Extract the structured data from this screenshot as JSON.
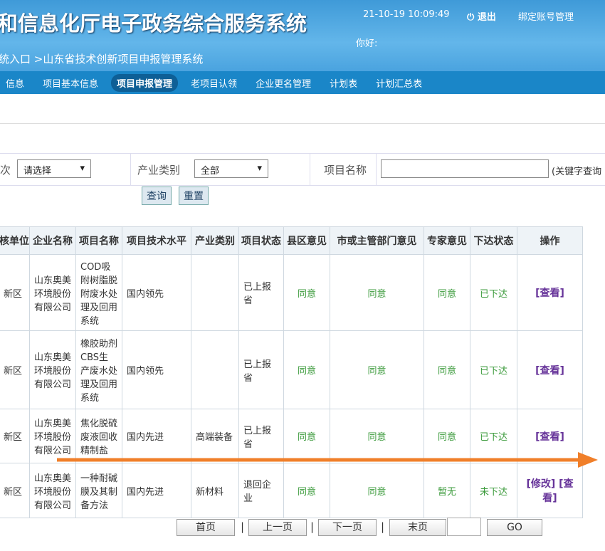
{
  "header": {
    "title": "和信息化厅电子政务综合服务系统",
    "clock": "21-10-19 10:09:49",
    "logout": "退出",
    "bind_account": "绑定账号管理",
    "greeting": "你好:",
    "breadcrumb": "统入口 >山东省技术创新项目申报管理系统"
  },
  "nav": {
    "items": [
      "信息",
      "项目基本信息",
      "项目申报管理",
      "老项目认领",
      "企业更名管理",
      "计划表",
      "计划汇总表"
    ],
    "active": 2
  },
  "filter": {
    "region_label": "次",
    "region_select": "请选择",
    "industry_label": "产业类别",
    "industry_select": "全部",
    "name_label": "项目名称",
    "name_hint": "(关键字查询",
    "search": "查询",
    "reset": "重置"
  },
  "table": {
    "headers": [
      "核单位",
      "企业名称",
      "项目名称",
      "项目技术水平",
      "产业类别",
      "项目状态",
      "县区意见",
      "市或主管部门意见",
      "专家意见",
      "下达状态",
      "操作"
    ],
    "rows": [
      [
        "新区",
        "山东奥美环境股份有限公司",
        "COD吸附树脂脱附废水处理及回用系统",
        "国内领先",
        null,
        "已上报省",
        "同意",
        "同意",
        "同意",
        "已下达",
        [
          "[查看]"
        ]
      ],
      [
        "新区",
        "山东奥美环境股份有限公司",
        "橡胶助剂CBS生产废水处理及回用系统",
        "国内领先",
        null,
        "已上报省",
        "同意",
        "同意",
        "同意",
        "已下达",
        [
          "[查看]"
        ]
      ],
      [
        "新区",
        "山东奥美环境股份有限公司",
        "焦化脱硫废液回收精制盐",
        "国内先进",
        "高端装备",
        "已上报省",
        "同意",
        "同意",
        "同意",
        "已下达",
        [
          "[查看]"
        ]
      ],
      [
        "新区",
        "山东奥美环境股份有限公司",
        "一种耐碱膜及其制备方法",
        "国内先进",
        "新材料",
        "退回企业",
        "同意",
        "同意",
        "暂无",
        "未下达",
        [
          "[修改]",
          "[查看]"
        ]
      ]
    ]
  },
  "pagination": {
    "first": "首页",
    "prev": "上一页",
    "next": "下一页",
    "last": "末页",
    "separator": "|",
    "go": "GO"
  }
}
